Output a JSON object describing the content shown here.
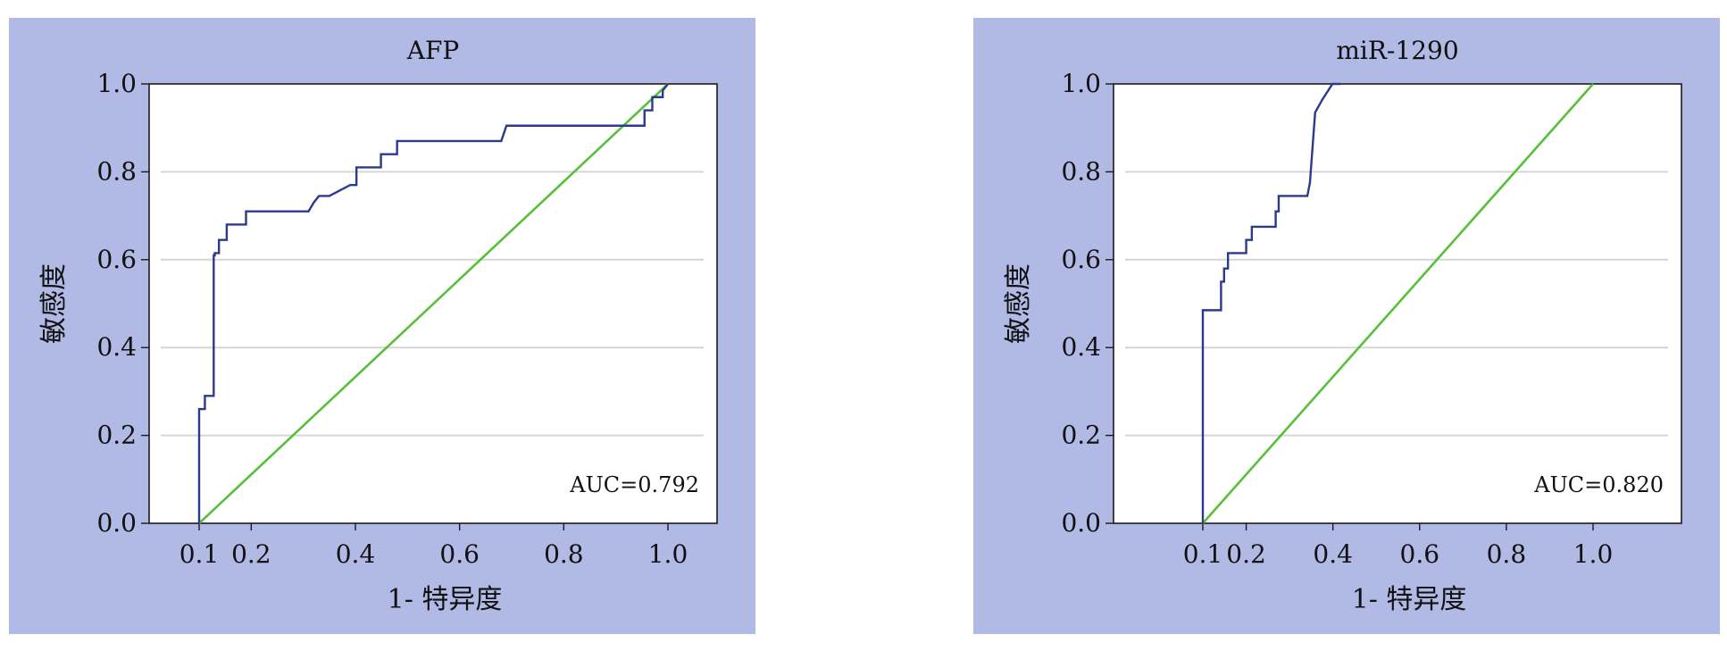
{
  "colors": {
    "panel_bg": "#b1b9e5",
    "roc_line": "#2b3a8c",
    "reference_line": "#57c03b",
    "gridline": "#d6d6d6"
  },
  "chart_data": [
    {
      "type": "line",
      "title": "AFP",
      "xlabel": "1- 特异度",
      "ylabel": "敏感度",
      "annotation": "AUC=0.792",
      "xlim": [
        0.1,
        1.0
      ],
      "ylim": [
        0.0,
        1.0
      ],
      "x_ticks": [
        "0.1",
        "0.2",
        "0.4",
        "0.6",
        "0.8",
        "1.0"
      ],
      "y_ticks": [
        "0.0",
        "0.2",
        "0.4",
        "0.6",
        "0.8",
        "1.0"
      ],
      "grid": "horizontal",
      "series": [
        {
          "x": [
            0.1,
            0.1,
            0.103,
            0.111,
            0.111,
            0.128,
            0.128,
            0.13,
            0.13,
            0.138,
            0.138,
            0.153,
            0.153,
            0.19,
            0.19,
            0.31,
            0.32,
            0.33,
            0.35,
            0.39,
            0.4,
            0.402,
            0.402,
            0.449,
            0.449,
            0.48,
            0.48,
            0.68,
            0.69,
            0.9,
            0.955,
            0.955,
            0.97,
            0.97,
            0.99,
            0.99,
            1.0
          ],
          "y": [
            0.0,
            0.26,
            0.26,
            0.26,
            0.29,
            0.29,
            0.61,
            0.61,
            0.615,
            0.615,
            0.645,
            0.645,
            0.68,
            0.68,
            0.71,
            0.71,
            0.73,
            0.745,
            0.745,
            0.77,
            0.77,
            0.77,
            0.81,
            0.81,
            0.84,
            0.84,
            0.87,
            0.87,
            0.905,
            0.905,
            0.905,
            0.94,
            0.94,
            0.97,
            0.97,
            0.985,
            1.0
          ]
        },
        {
          "x": [
            0.1,
            1.0
          ],
          "y": [
            0.0,
            1.0
          ]
        }
      ]
    },
    {
      "type": "line",
      "title": "miR-1290",
      "xlabel": "1- 特异度",
      "ylabel": "敏感度",
      "annotation": "AUC=0.820",
      "xlim": [
        0.1,
        1.0
      ],
      "ylim": [
        0.0,
        1.0
      ],
      "x_ticks": [
        "0.1",
        "0.2",
        "0.4",
        "0.6",
        "0.8",
        "1.0"
      ],
      "y_ticks": [
        "0.0",
        "0.2",
        "0.4",
        "0.6",
        "0.8",
        "1.0"
      ],
      "grid": "horizontal",
      "series": [
        {
          "x": [
            0.1,
            0.1,
            0.142,
            0.142,
            0.149,
            0.149,
            0.158,
            0.158,
            0.2,
            0.2,
            0.213,
            0.213,
            0.268,
            0.268,
            0.275,
            0.275,
            0.341,
            0.347,
            0.347,
            0.359,
            0.359,
            0.376,
            0.376,
            0.399,
            0.399,
            0.417,
            0.417
          ],
          "y": [
            0.0,
            0.485,
            0.485,
            0.55,
            0.55,
            0.58,
            0.58,
            0.615,
            0.615,
            0.645,
            0.645,
            0.675,
            0.675,
            0.71,
            0.71,
            0.745,
            0.745,
            0.775,
            0.775,
            0.935,
            0.935,
            0.965,
            0.965,
            1.0,
            1.0,
            1.0,
            1.0
          ]
        },
        {
          "x": [
            0.1,
            1.0
          ],
          "y": [
            0.0,
            1.0
          ]
        }
      ]
    }
  ]
}
